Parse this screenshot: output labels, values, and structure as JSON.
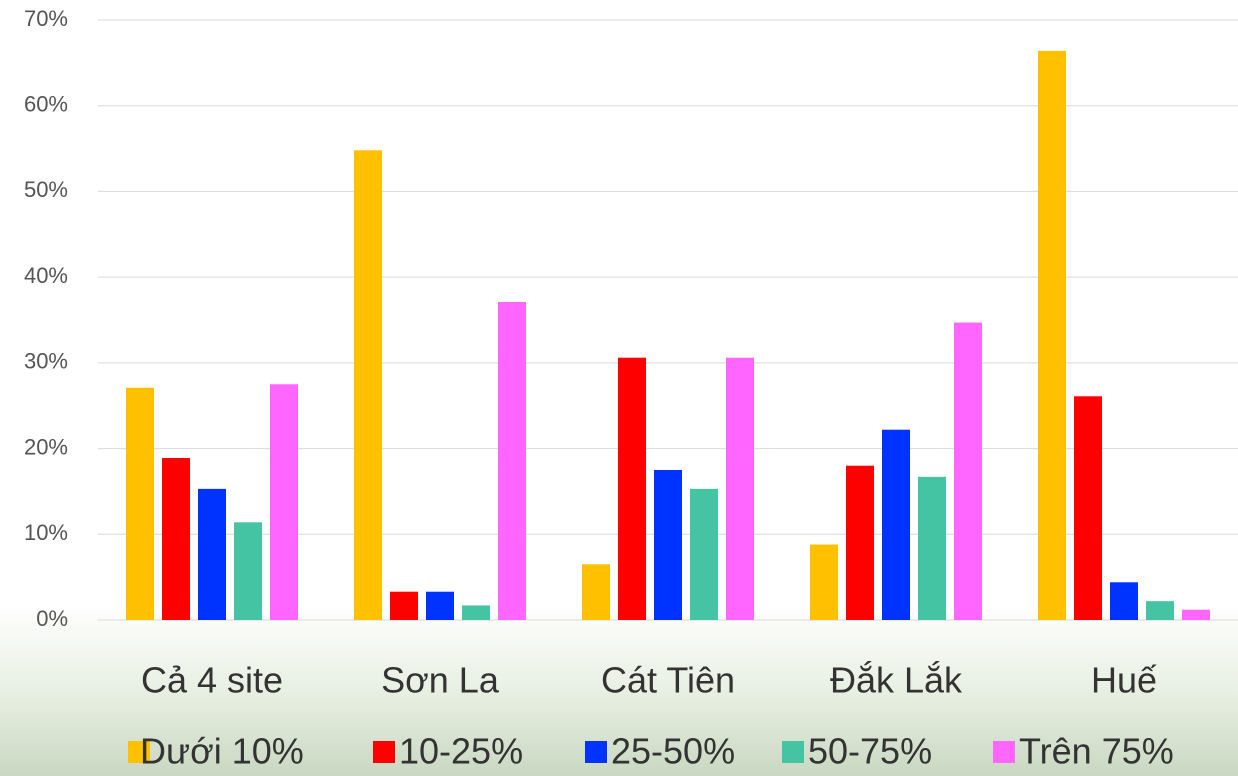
{
  "chart_data": {
    "type": "bar",
    "categories": [
      "Cả 4 site",
      "Sơn La",
      "Cát Tiên",
      "Đắk Lắk",
      "Huế"
    ],
    "series": [
      {
        "name": "Dưới 10%",
        "color": "#FFC000",
        "values": [
          27.1,
          54.8,
          6.5,
          8.8,
          66.4
        ]
      },
      {
        "name": "10-25%",
        "color": "#FF0000",
        "values": [
          18.9,
          3.3,
          30.6,
          18.0,
          26.1
        ]
      },
      {
        "name": "25-50%",
        "color": "#0033FF",
        "values": [
          15.3,
          3.3,
          17.5,
          22.2,
          4.4
        ]
      },
      {
        "name": "50-75%",
        "color": "#45C4A4",
        "values": [
          11.4,
          1.7,
          15.3,
          16.7,
          2.2
        ]
      },
      {
        "name": "Trên 75%",
        "color": "#FF66FF",
        "values": [
          27.5,
          37.1,
          30.6,
          34.7,
          1.2
        ]
      }
    ],
    "ylim": [
      0,
      70
    ],
    "yticks": [
      {
        "value": 0,
        "label": "0%"
      },
      {
        "value": 10,
        "label": "10%"
      },
      {
        "value": 20,
        "label": "20%"
      },
      {
        "value": 30,
        "label": "30%"
      },
      {
        "value": 40,
        "label": "40%"
      },
      {
        "value": 50,
        "label": "50%"
      },
      {
        "value": 60,
        "label": "60%"
      },
      {
        "value": 70,
        "label": "70%"
      }
    ],
    "grid": true,
    "legend": "bottom"
  }
}
